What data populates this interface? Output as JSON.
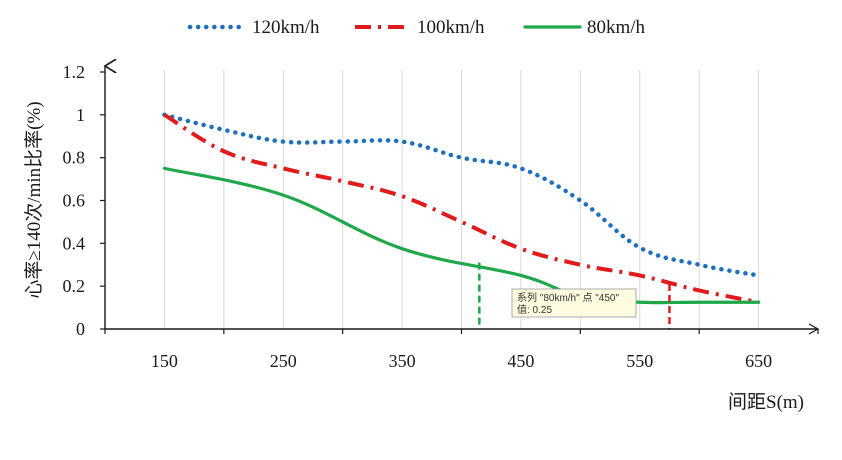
{
  "chart_data": {
    "type": "line",
    "title": "",
    "xlabel": "间距S(m)",
    "ylabel": "心率≥140次/min比率(%)",
    "x": [
      150,
      250,
      350,
      450,
      550,
      650
    ],
    "x_tick_labels": [
      "150",
      "250",
      "350",
      "450",
      "550",
      "650"
    ],
    "xlim": [
      100,
      700
    ],
    "ylim": [
      0,
      1.2
    ],
    "y_ticks": [
      0,
      0.2,
      0.4,
      0.6,
      0.8,
      1,
      1.2
    ],
    "y_tick_labels": [
      "0",
      "0.2",
      "0.4",
      "0.6",
      "0.8",
      "1",
      "1.2"
    ],
    "grid": "vertical",
    "legend_position": "top",
    "series": [
      {
        "name": "120km/h",
        "style": "dotted",
        "color": "#1f6fbf",
        "x": [
          150,
          200,
          250,
          300,
          350,
          400,
          450,
          500,
          550,
          600,
          650
        ],
        "values": [
          1.0,
          0.93,
          0.875,
          0.875,
          0.875,
          0.8,
          0.75,
          0.6,
          0.38,
          0.3,
          0.25
        ]
      },
      {
        "name": "100km/h",
        "style": "dash-dot",
        "color": "#e01b1b",
        "x": [
          150,
          200,
          250,
          300,
          350,
          400,
          450,
          500,
          550,
          600,
          650
        ],
        "values": [
          1.0,
          0.83,
          0.75,
          0.69,
          0.62,
          0.5,
          0.375,
          0.3,
          0.25,
          0.18,
          0.125
        ]
      },
      {
        "name": "80km/h",
        "style": "solid",
        "color": "#1fa84a",
        "x": [
          150,
          250,
          350,
          450,
          500,
          550,
          600,
          650
        ],
        "values": [
          0.75,
          0.625,
          0.375,
          0.25,
          0.15,
          0.125,
          0.125,
          0.125
        ]
      }
    ],
    "markers": [
      {
        "series": "80km/h",
        "x": 415,
        "y": 0.31,
        "color": "#1fa84a",
        "style": "dashed-vertical"
      },
      {
        "series": "100km/h",
        "x": 575,
        "y": 0.21,
        "color": "#e01b1b",
        "style": "dashed-vertical"
      }
    ],
    "tooltip": {
      "line1": "系列 \"80km/h\" 点 \"450\"",
      "line2": "值: 0.25"
    }
  }
}
